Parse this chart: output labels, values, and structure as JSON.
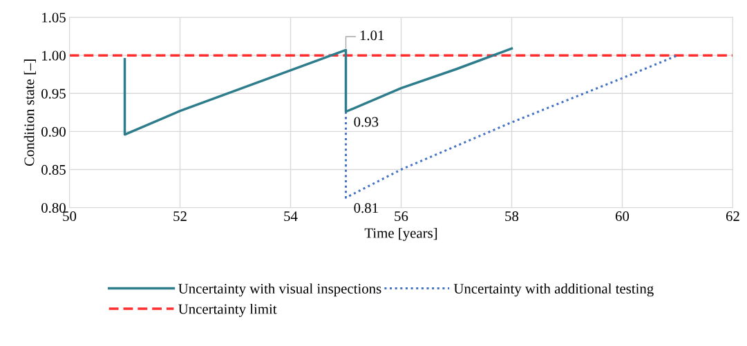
{
  "chart_data": {
    "type": "line",
    "xlabel": "Time [years]",
    "ylabel": "Condition state [–]",
    "xlim": [
      50,
      62
    ],
    "xticks": [
      50,
      52,
      54,
      56,
      58,
      60,
      62
    ],
    "ylim": [
      0.8,
      1.05
    ],
    "yticks": [
      {
        "value": 0.8,
        "label": "0.80"
      },
      {
        "value": 0.85,
        "label": "0.85"
      },
      {
        "value": 0.9,
        "label": "0.90"
      },
      {
        "value": 0.95,
        "label": "0.95"
      },
      {
        "value": 1.0,
        "label": "1.00"
      },
      {
        "value": 1.05,
        "label": "1.05"
      }
    ],
    "grid": true,
    "legend": "bottom",
    "series": [
      {
        "name": "Uncertainty with additional testing",
        "color": "#4472c4",
        "line_style": "dotted",
        "x": [
          55,
          55,
          56,
          58,
          60,
          61
        ],
        "values": [
          0.926,
          0.813,
          0.85,
          0.912,
          0.97,
          1.0
        ],
        "value_labels": [
          null,
          "0.81",
          null,
          null,
          null,
          null
        ]
      },
      {
        "name": "Uncertainty with visual inspections",
        "color": "#2e7d8c",
        "line_style": "solid",
        "x": [
          51,
          51,
          52,
          55,
          55,
          56,
          57,
          58
        ],
        "values": [
          0.995,
          0.896,
          0.927,
          1.007,
          0.926,
          0.957,
          0.982,
          1.009
        ],
        "value_labels": [
          null,
          null,
          null,
          "1.01",
          "0.93",
          null,
          null,
          null
        ]
      }
    ],
    "ref_lines": [
      {
        "axis": "y",
        "value": 1.0,
        "label": "Uncertainty limit",
        "color": "#ff2d2d",
        "line_style": "dashed"
      }
    ]
  }
}
